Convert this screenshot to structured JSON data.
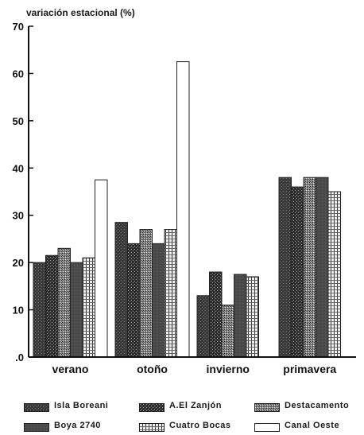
{
  "chart_data": {
    "type": "bar",
    "ylabel": "variación estacional (%)",
    "ylim": [
      0,
      70
    ],
    "yticks": [
      0,
      10,
      20,
      30,
      40,
      50,
      60,
      70
    ],
    "ytick_labels": [
      ".0",
      "10",
      "20",
      "30",
      "40",
      "50",
      "60",
      "70"
    ],
    "categories": [
      "verano",
      "otoño",
      "invierno",
      "primavera"
    ],
    "series": [
      {
        "name": "Isla Boreani",
        "values": [
          20,
          28.5,
          13,
          38
        ],
        "pattern": "dark-mottled"
      },
      {
        "name": "A.El Zanjón",
        "values": [
          21.5,
          24,
          18,
          36
        ],
        "pattern": "dark-dotted"
      },
      {
        "name": "Destacamento",
        "values": [
          23,
          27,
          11,
          38
        ],
        "pattern": "stipple"
      },
      {
        "name": "Boya 2740",
        "values": [
          20,
          24,
          17.5,
          38
        ],
        "pattern": "solid-dark"
      },
      {
        "name": "Cuatro Bocas",
        "values": [
          21,
          27,
          17,
          35
        ],
        "pattern": "grid"
      },
      {
        "name": "Canal Oeste",
        "values": [
          37.5,
          62.5,
          null,
          null
        ],
        "pattern": "white"
      }
    ]
  }
}
